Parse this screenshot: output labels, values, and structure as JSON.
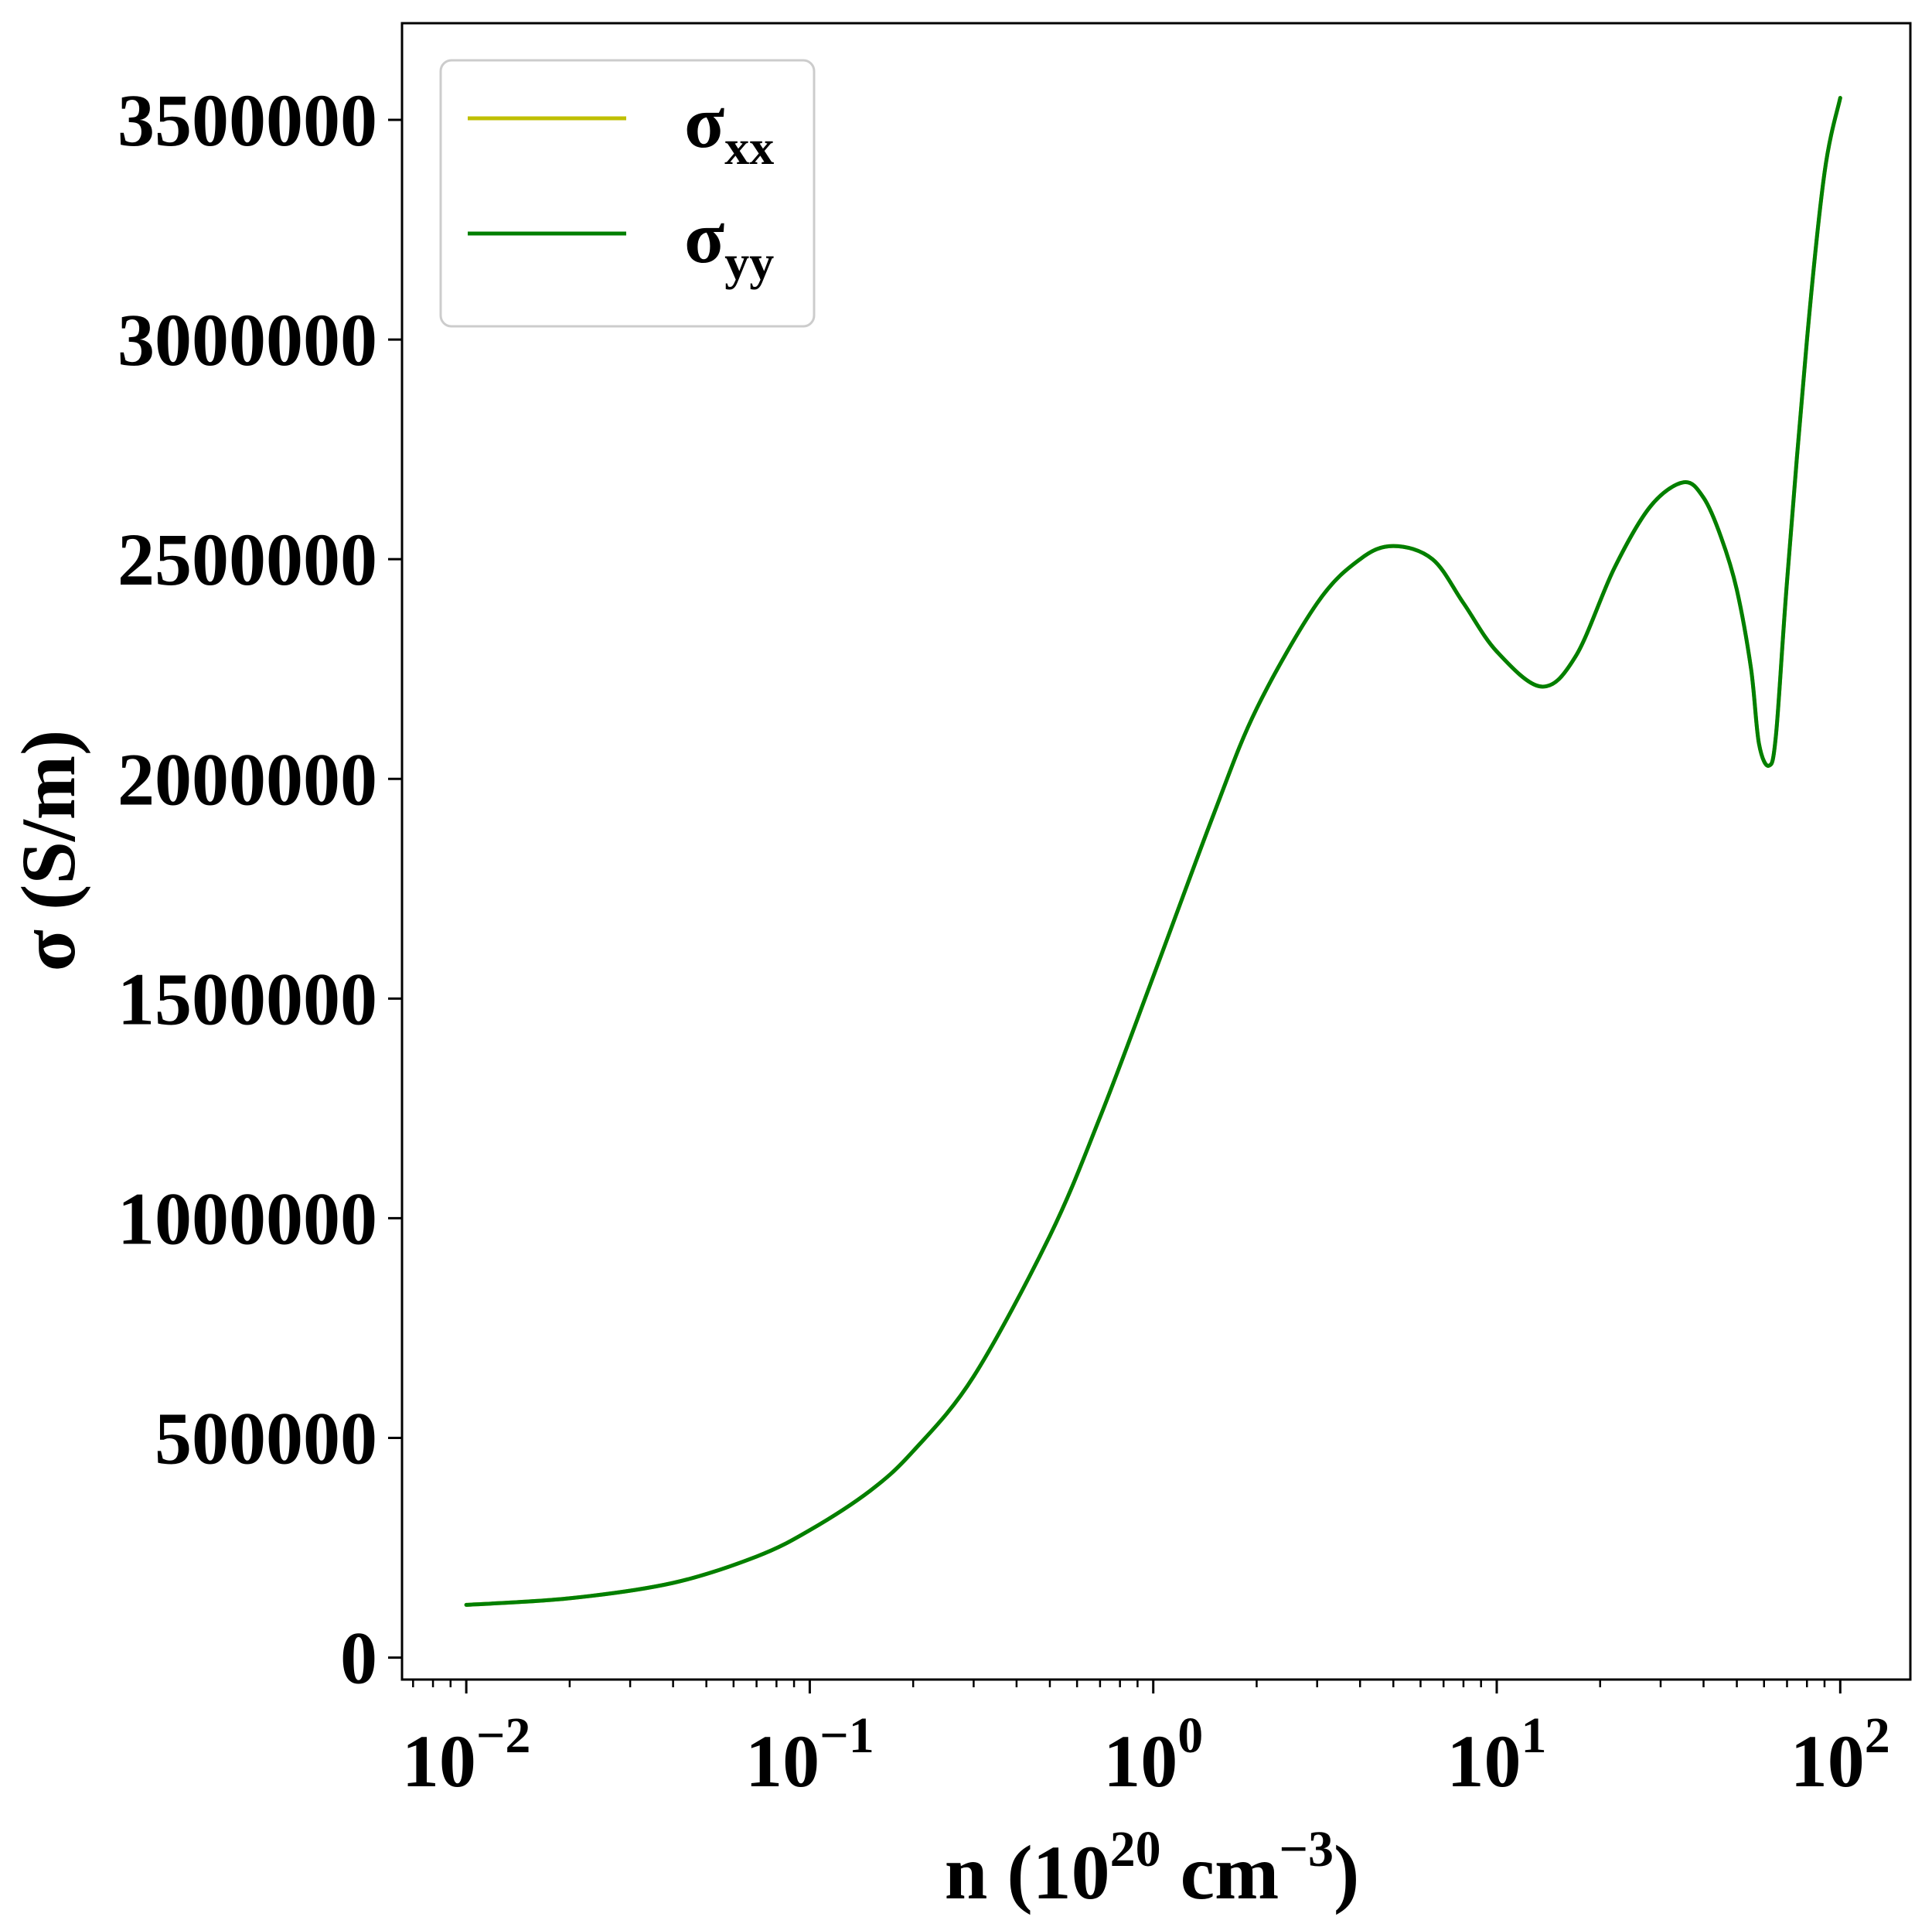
{
  "chart_data": {
    "type": "line",
    "xlabel": {
      "base": "n (10",
      "exp1": "20",
      "mid": " cm",
      "exp2": "−3",
      "end": ")"
    },
    "ylabel": "σ (S/m)",
    "xscale": "log",
    "xlim": [
      0.0065,
      160
    ],
    "ylim": [
      -50000,
      3720000
    ],
    "grid": false,
    "legend_placement": "top-left",
    "x_ticks": [
      {
        "value": 0.01,
        "base": "10",
        "exp": "−2"
      },
      {
        "value": 0.1,
        "base": "10",
        "exp": "−1"
      },
      {
        "value": 1,
        "base": "10",
        "exp": "0"
      },
      {
        "value": 10,
        "base": "10",
        "exp": "1"
      },
      {
        "value": 100,
        "base": "10",
        "exp": "2"
      }
    ],
    "y_ticks": [
      {
        "value": 0,
        "label": "0"
      },
      {
        "value": 500000,
        "label": "500000"
      },
      {
        "value": 1000000,
        "label": "1000000"
      },
      {
        "value": 1500000,
        "label": "1500000"
      },
      {
        "value": 2000000,
        "label": "2000000"
      },
      {
        "value": 2500000,
        "label": "2500000"
      },
      {
        "value": 3000000,
        "label": "3000000"
      },
      {
        "value": 3500000,
        "label": "3500000"
      }
    ],
    "series": [
      {
        "name": "σxx",
        "legend_main": "σ",
        "legend_sub": "xx",
        "color": "#bfbf00",
        "x": [
          0.01,
          0.02,
          0.04,
          0.07,
          0.1,
          0.15,
          0.2,
          0.3,
          0.5,
          0.7,
          1.0,
          1.5,
          2.0,
          3.0,
          4.0,
          5.0,
          6.5,
          8.0,
          10.0,
          13.5,
          17.0,
          22.0,
          28.0,
          35.0,
          40.0,
          45.0,
          50.0,
          55.0,
          58.0,
          62.0,
          65.0,
          70.0,
          80.0,
          90.0,
          100.0
        ],
        "y": [
          120000,
          135000,
          170000,
          230000,
          290000,
          380000,
          470000,
          640000,
          960000,
          1230000,
          1550000,
          1920000,
          2160000,
          2400000,
          2500000,
          2530000,
          2500000,
          2400000,
          2290000,
          2210000,
          2280000,
          2480000,
          2620000,
          2675000,
          2640000,
          2550000,
          2430000,
          2250000,
          2080000,
          2030000,
          2100000,
          2450000,
          3000000,
          3380000,
          3550000
        ]
      },
      {
        "name": "σyy",
        "legend_main": "σ",
        "legend_sub": "yy",
        "color": "#007f00",
        "x": [
          0.01,
          0.02,
          0.04,
          0.07,
          0.1,
          0.15,
          0.2,
          0.3,
          0.5,
          0.7,
          1.0,
          1.5,
          2.0,
          3.0,
          4.0,
          5.0,
          6.5,
          8.0,
          10.0,
          13.5,
          17.0,
          22.0,
          28.0,
          35.0,
          40.0,
          45.0,
          50.0,
          55.0,
          58.0,
          62.0,
          65.0,
          70.0,
          80.0,
          90.0,
          100.0
        ],
        "y": [
          120000,
          135000,
          170000,
          230000,
          290000,
          380000,
          470000,
          640000,
          960000,
          1230000,
          1550000,
          1920000,
          2160000,
          2400000,
          2500000,
          2530000,
          2500000,
          2400000,
          2290000,
          2210000,
          2280000,
          2480000,
          2620000,
          2675000,
          2640000,
          2550000,
          2430000,
          2250000,
          2080000,
          2030000,
          2100000,
          2450000,
          3000000,
          3380000,
          3550000
        ]
      }
    ]
  }
}
